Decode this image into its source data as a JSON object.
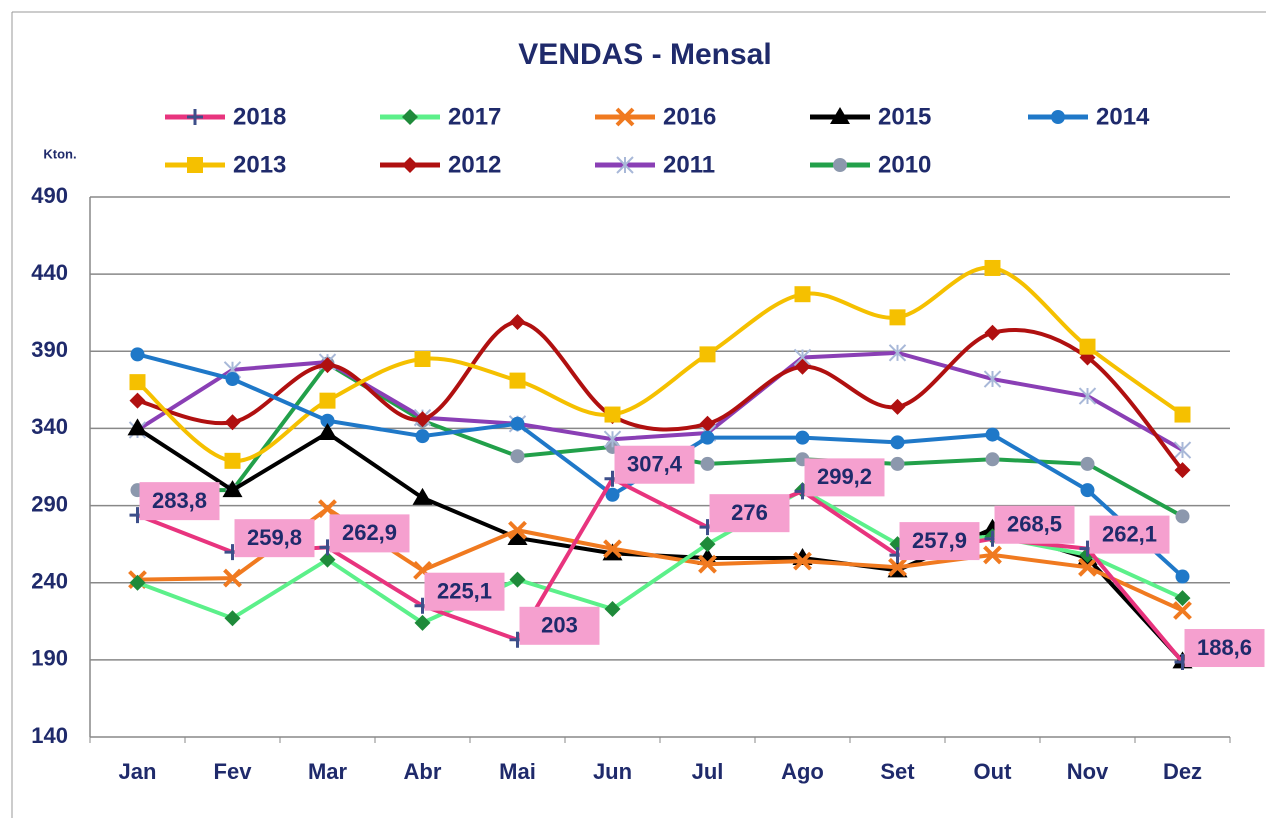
{
  "chart_data": {
    "type": "line",
    "title": "VENDAS - Mensal",
    "y_label": "Kton.",
    "categories": [
      "Jan",
      "Fev",
      "Mar",
      "Abr",
      "Mai",
      "Jun",
      "Jul",
      "Ago",
      "Set",
      "Out",
      "Nov",
      "Dez"
    ],
    "ylim": [
      140,
      490
    ],
    "yticks": [
      140,
      190,
      240,
      290,
      340,
      390,
      440,
      490
    ],
    "grid": true,
    "series": [
      {
        "name": "2018",
        "color": "#e8347e",
        "marker": "plus",
        "marker_color": "#3d4f8a",
        "smooth": false,
        "values": [
          283.8,
          259.8,
          262.9,
          225.1,
          203,
          307.4,
          276,
          299.2,
          257.9,
          268.5,
          262.1,
          188.6
        ],
        "value_labels": [
          "283,8",
          "259,8",
          "262,9",
          "225,1",
          "203",
          "307,4",
          "276",
          "299,2",
          "257,9",
          "268,5",
          "262,1",
          "188,6"
        ]
      },
      {
        "name": "2017",
        "color": "#5cf08a",
        "marker": "diamond",
        "marker_color": "#1e8a3a",
        "smooth": false,
        "values": [
          240,
          217,
          255,
          214,
          242,
          223,
          265,
          300,
          265,
          270,
          258,
          230
        ]
      },
      {
        "name": "2016",
        "color": "#f07a20",
        "marker": "x",
        "marker_color": "#f07a20",
        "smooth": false,
        "values": [
          242,
          243,
          288,
          248,
          274,
          262,
          252,
          254,
          250,
          258,
          250,
          222
        ]
      },
      {
        "name": "2015",
        "color": "#000000",
        "marker": "triangle",
        "marker_color": "#000000",
        "smooth": false,
        "values": [
          340,
          300,
          337,
          295,
          269,
          259,
          256,
          256,
          248,
          275,
          256,
          189
        ]
      },
      {
        "name": "2014",
        "color": "#1f78c8",
        "marker": "circle",
        "marker_color": "#1f78c8",
        "smooth": false,
        "values": [
          388,
          372,
          345,
          335,
          343,
          297,
          334,
          334,
          331,
          336,
          300,
          244
        ]
      },
      {
        "name": "2013",
        "color": "#f5c000",
        "marker": "square",
        "marker_color": "#f5c000",
        "smooth": true,
        "values": [
          370,
          319,
          358,
          385,
          371,
          349,
          388,
          427,
          412,
          444,
          393,
          349
        ]
      },
      {
        "name": "2012",
        "color": "#b01010",
        "marker": "diamond",
        "marker_color": "#b01010",
        "smooth": true,
        "values": [
          358,
          344,
          381,
          346,
          409,
          348,
          343,
          380,
          354,
          402,
          386,
          313
        ]
      },
      {
        "name": "2011",
        "color": "#8a3fb5",
        "marker": "star",
        "marker_color": "#a8b8d8",
        "smooth": false,
        "values": [
          339,
          378,
          383,
          347,
          343,
          333,
          337,
          386,
          389,
          372,
          361,
          326
        ]
      },
      {
        "name": "2010",
        "color": "#22a04a",
        "marker": "circle",
        "marker_color": "#8c98ad",
        "smooth": false,
        "values": [
          300,
          300,
          382,
          345,
          322,
          328,
          317,
          320,
          317,
          320,
          317,
          283
        ]
      }
    ]
  }
}
